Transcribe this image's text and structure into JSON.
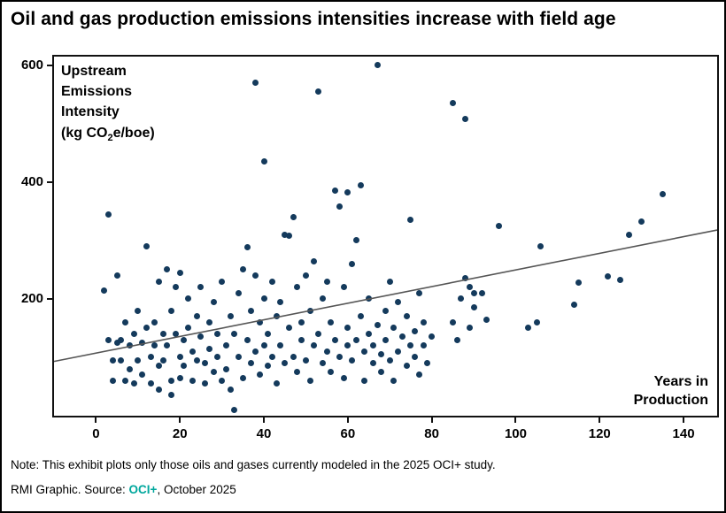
{
  "title": "Oil and gas production emissions intensities increase with field age",
  "y_axis_title": {
    "line1": "Upstream",
    "line2": "Emissions",
    "line3": "Intensity",
    "unit_pre": "(kg CO",
    "unit_sub": "2",
    "unit_post": "e/boe)"
  },
  "x_axis_title": {
    "line1": "Years in",
    "line2": "Production"
  },
  "footer": {
    "note": "Note: This exhibit plots only those oils and gases currently modeled in the 2025 OCI+ study.",
    "source_prefix": "RMI Graphic. Source: ",
    "source_link": "OCI+",
    "source_suffix": ", October 2025"
  },
  "colors": {
    "point": "#143A5C",
    "trend": "#555555",
    "accent_teal": "#00A79D",
    "axis": "#000000"
  },
  "chart_data": {
    "type": "scatter",
    "title": "Oil and gas production emissions intensities increase with field age",
    "xlabel": "Years in Production",
    "ylabel": "Upstream Emissions Intensity (kg CO2e/boe)",
    "xlim": [
      -10,
      148
    ],
    "ylim": [
      0,
      615
    ],
    "x_ticks": [
      0,
      20,
      40,
      60,
      80,
      100,
      120,
      140
    ],
    "y_ticks": [
      200,
      400,
      600
    ],
    "grid": false,
    "legend": null,
    "point_color": "#143A5C",
    "trendline": {
      "x1": -10,
      "y1": 93,
      "x2": 148,
      "y2": 318,
      "color": "#555555"
    },
    "points": [
      [
        2,
        215
      ],
      [
        3,
        345
      ],
      [
        3,
        130
      ],
      [
        4,
        95
      ],
      [
        5,
        125
      ],
      [
        4,
        60
      ],
      [
        5,
        240
      ],
      [
        6,
        130
      ],
      [
        6,
        95
      ],
      [
        7,
        160
      ],
      [
        7,
        60
      ],
      [
        8,
        120
      ],
      [
        8,
        80
      ],
      [
        9,
        140
      ],
      [
        9,
        55
      ],
      [
        10,
        180
      ],
      [
        10,
        95
      ],
      [
        12,
        290
      ],
      [
        11,
        125
      ],
      [
        11,
        70
      ],
      [
        12,
        150
      ],
      [
        13,
        100
      ],
      [
        13,
        55
      ],
      [
        14,
        160
      ],
      [
        14,
        120
      ],
      [
        15,
        230
      ],
      [
        15,
        85
      ],
      [
        15,
        45
      ],
      [
        16,
        140
      ],
      [
        16,
        95
      ],
      [
        17,
        250
      ],
      [
        17,
        120
      ],
      [
        18,
        180
      ],
      [
        18,
        60
      ],
      [
        19,
        220
      ],
      [
        19,
        140
      ],
      [
        20,
        245
      ],
      [
        20,
        100
      ],
      [
        20,
        65
      ],
      [
        18,
        35
      ],
      [
        21,
        130
      ],
      [
        21,
        85
      ],
      [
        22,
        200
      ],
      [
        22,
        150
      ],
      [
        23,
        110
      ],
      [
        23,
        60
      ],
      [
        24,
        170
      ],
      [
        24,
        95
      ],
      [
        25,
        220
      ],
      [
        25,
        135
      ],
      [
        26,
        90
      ],
      [
        26,
        55
      ],
      [
        27,
        160
      ],
      [
        27,
        115
      ],
      [
        28,
        195
      ],
      [
        28,
        75
      ],
      [
        29,
        140
      ],
      [
        29,
        100
      ],
      [
        30,
        230
      ],
      [
        30,
        60
      ],
      [
        31,
        120
      ],
      [
        31,
        80
      ],
      [
        32,
        170
      ],
      [
        32,
        45
      ],
      [
        33,
        10
      ],
      [
        33,
        140
      ],
      [
        34,
        100
      ],
      [
        34,
        210
      ],
      [
        35,
        250
      ],
      [
        35,
        65
      ],
      [
        36,
        288
      ],
      [
        36,
        130
      ],
      [
        37,
        180
      ],
      [
        37,
        90
      ],
      [
        38,
        570
      ],
      [
        38,
        240
      ],
      [
        38,
        110
      ],
      [
        39,
        160
      ],
      [
        39,
        70
      ],
      [
        40,
        435
      ],
      [
        40,
        200
      ],
      [
        40,
        120
      ],
      [
        41,
        140
      ],
      [
        41,
        85
      ],
      [
        42,
        230
      ],
      [
        42,
        100
      ],
      [
        43,
        170
      ],
      [
        43,
        55
      ],
      [
        44,
        195
      ],
      [
        44,
        120
      ],
      [
        45,
        310
      ],
      [
        45,
        90
      ],
      [
        46,
        308
      ],
      [
        46,
        150
      ],
      [
        47,
        340
      ],
      [
        47,
        100
      ],
      [
        48,
        220
      ],
      [
        48,
        75
      ],
      [
        49,
        160
      ],
      [
        49,
        130
      ],
      [
        50,
        240
      ],
      [
        50,
        95
      ],
      [
        51,
        180
      ],
      [
        51,
        60
      ],
      [
        52,
        265
      ],
      [
        52,
        120
      ],
      [
        53,
        555
      ],
      [
        53,
        140
      ],
      [
        54,
        200
      ],
      [
        54,
        90
      ],
      [
        55,
        230
      ],
      [
        55,
        110
      ],
      [
        56,
        160
      ],
      [
        56,
        75
      ],
      [
        57,
        385
      ],
      [
        57,
        130
      ],
      [
        58,
        358
      ],
      [
        58,
        100
      ],
      [
        59,
        220
      ],
      [
        59,
        65
      ],
      [
        60,
        383
      ],
      [
        60,
        150
      ],
      [
        60,
        120
      ],
      [
        61,
        260
      ],
      [
        61,
        95
      ],
      [
        62,
        300
      ],
      [
        62,
        130
      ],
      [
        63,
        395
      ],
      [
        63,
        170
      ],
      [
        64,
        110
      ],
      [
        64,
        60
      ],
      [
        65,
        200
      ],
      [
        65,
        140
      ],
      [
        66,
        90
      ],
      [
        66,
        120
      ],
      [
        67,
        600
      ],
      [
        67,
        155
      ],
      [
        68,
        105
      ],
      [
        68,
        75
      ],
      [
        69,
        180
      ],
      [
        69,
        130
      ],
      [
        70,
        230
      ],
      [
        70,
        95
      ],
      [
        71,
        150
      ],
      [
        71,
        60
      ],
      [
        72,
        195
      ],
      [
        72,
        110
      ],
      [
        73,
        135
      ],
      [
        74,
        85
      ],
      [
        74,
        170
      ],
      [
        75,
        335
      ],
      [
        75,
        120
      ],
      [
        76,
        100
      ],
      [
        76,
        145
      ],
      [
        77,
        210
      ],
      [
        77,
        70
      ],
      [
        78,
        160
      ],
      [
        78,
        120
      ],
      [
        79,
        90
      ],
      [
        80,
        135
      ],
      [
        85,
        535
      ],
      [
        85,
        160
      ],
      [
        86,
        130
      ],
      [
        87,
        200
      ],
      [
        88,
        508
      ],
      [
        88,
        235
      ],
      [
        89,
        220
      ],
      [
        89,
        150
      ],
      [
        90,
        185
      ],
      [
        90,
        210
      ],
      [
        92,
        210
      ],
      [
        93,
        165
      ],
      [
        96,
        325
      ],
      [
        103,
        150
      ],
      [
        105,
        160
      ],
      [
        106,
        290
      ],
      [
        114,
        190
      ],
      [
        115,
        228
      ],
      [
        122,
        238
      ],
      [
        125,
        232
      ],
      [
        127,
        310
      ],
      [
        130,
        332
      ],
      [
        135,
        380
      ]
    ]
  }
}
